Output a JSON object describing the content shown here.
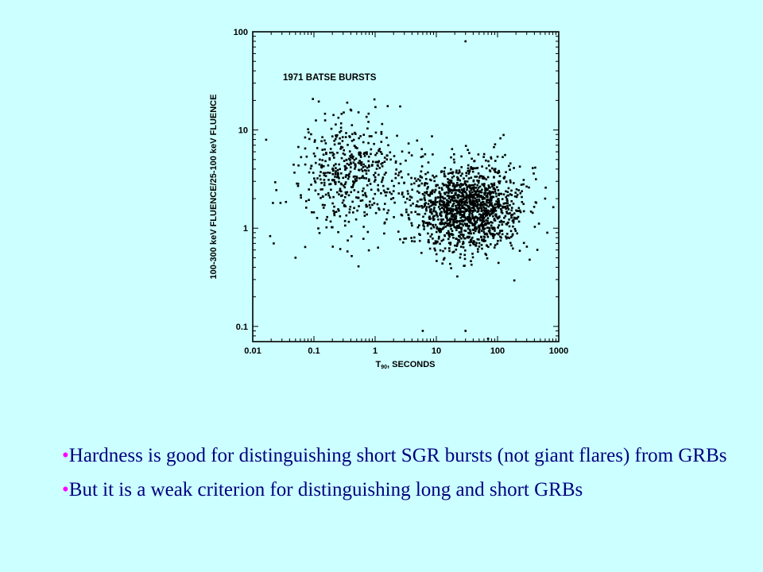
{
  "chart_data": {
    "type": "scatter",
    "title": "1971 BATSE BURSTS",
    "xlabel": "T90, SECONDS",
    "ylabel": "100-300 keV FLUENCE/25-100 keV FLUENCE",
    "xscale": "log",
    "yscale": "log",
    "xlim": [
      0.01,
      1000
    ],
    "ylim": [
      0.07,
      100
    ],
    "x_ticks": [
      "0.01",
      "0.1",
      "1",
      "10",
      "100",
      "1000"
    ],
    "y_ticks": [
      "0.1",
      "1",
      "10",
      "100"
    ],
    "grid": false,
    "clusters": [
      {
        "name": "short bursts",
        "n": 500,
        "log_t90_mean": -0.4,
        "log_t90_sd": 0.42,
        "log_hr_mean": 0.55,
        "log_hr_sd": 0.28
      },
      {
        "name": "long bursts",
        "n": 1471,
        "log_t90_mean": 1.5,
        "log_t90_sd": 0.45,
        "log_hr_mean": 0.2,
        "log_hr_sd": 0.22
      }
    ],
    "notable_points": [
      {
        "x": 0.022,
        "y": 0.7
      },
      {
        "x": 0.05,
        "y": 0.5
      },
      {
        "x": 0.35,
        "y": 19
      },
      {
        "x": 30,
        "y": 80
      },
      {
        "x": 6,
        "y": 0.09
      },
      {
        "x": 30,
        "y": 0.09
      },
      {
        "x": 70,
        "y": 0.075
      },
      {
        "x": 650,
        "y": 0.9
      },
      {
        "x": 600,
        "y": 2
      }
    ]
  },
  "bullets": [
    {
      "marker": "•",
      "text": "Hardness is good for distinguishing short SGR bursts (not giant flares) from GRBs"
    },
    {
      "marker": "•",
      "text": "But it is a weak criterion for distinguishing long and short GRBs"
    }
  ]
}
